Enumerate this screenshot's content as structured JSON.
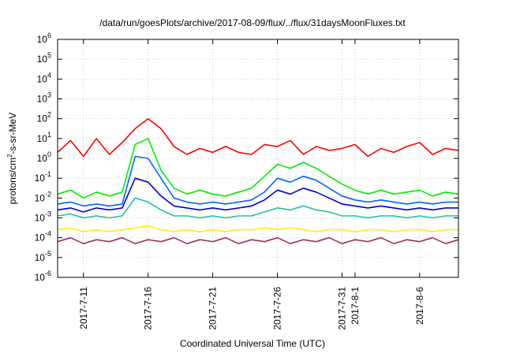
{
  "chart_data": {
    "type": "line",
    "title": "/data/run/goesPlots/archive/2017-08-09/flux/../flux/31daysMoonFluxes.txt",
    "xlabel": "Coordinated Universal Time (UTC)",
    "ylabel_parts": [
      "protons/cm",
      "2",
      "-s-sr-MeV"
    ],
    "y_scale": "log",
    "ylim_exp": [
      -6,
      6
    ],
    "y_ticks": [
      {
        "base": "10",
        "exp": "-6"
      },
      {
        "base": "10",
        "exp": "-5"
      },
      {
        "base": "10",
        "exp": "-4"
      },
      {
        "base": "10",
        "exp": "-3"
      },
      {
        "base": "10",
        "exp": "-2"
      },
      {
        "base": "10",
        "exp": "-1"
      },
      {
        "base": "10",
        "exp": "0"
      },
      {
        "base": "10",
        "exp": "1"
      },
      {
        "base": "10",
        "exp": "2"
      },
      {
        "base": "10",
        "exp": "3"
      },
      {
        "base": "10",
        "exp": "4"
      },
      {
        "base": "10",
        "exp": "5"
      },
      {
        "base": "10",
        "exp": "6"
      }
    ],
    "xlim": [
      "2017-07-09",
      "2017-08-09"
    ],
    "x_ticks": [
      "2017-7-11",
      "2017-7-16",
      "2017-7-21",
      "2017-7-26",
      "2017-7-31",
      "2017-8-1",
      "2017-8-6"
    ],
    "grid": true,
    "series": [
      {
        "color": "#ff0000",
        "x": [
          "2017-07-09",
          "2017-07-10",
          "2017-07-11",
          "2017-07-12",
          "2017-07-13",
          "2017-07-14",
          "2017-07-15",
          "2017-07-16",
          "2017-07-17",
          "2017-07-18",
          "2017-07-19",
          "2017-07-20",
          "2017-07-21",
          "2017-07-22",
          "2017-07-23",
          "2017-07-24",
          "2017-07-25",
          "2017-07-26",
          "2017-07-27",
          "2017-07-28",
          "2017-07-29",
          "2017-07-30",
          "2017-07-31",
          "2017-08-01",
          "2017-08-02",
          "2017-08-03",
          "2017-08-04",
          "2017-08-05",
          "2017-08-06",
          "2017-08-07",
          "2017-08-08",
          "2017-08-09"
        ],
        "log10_y": [
          0.3,
          0.9,
          0.1,
          1.0,
          0.2,
          0.8,
          1.5,
          2.0,
          1.5,
          0.6,
          0.2,
          0.5,
          0.3,
          0.6,
          0.3,
          0.2,
          0.7,
          0.6,
          0.9,
          0.2,
          0.6,
          0.4,
          0.5,
          0.7,
          0.1,
          0.5,
          0.3,
          0.6,
          0.8,
          0.2,
          0.5,
          0.4
        ]
      },
      {
        "color": "#00ee00",
        "x": [
          "2017-07-09",
          "2017-07-10",
          "2017-07-11",
          "2017-07-12",
          "2017-07-13",
          "2017-07-14",
          "2017-07-15",
          "2017-07-16",
          "2017-07-17",
          "2017-07-18",
          "2017-07-19",
          "2017-07-20",
          "2017-07-21",
          "2017-07-22",
          "2017-07-23",
          "2017-07-24",
          "2017-07-25",
          "2017-07-26",
          "2017-07-27",
          "2017-07-28",
          "2017-07-29",
          "2017-07-30",
          "2017-07-31",
          "2017-08-01",
          "2017-08-02",
          "2017-08-03",
          "2017-08-04",
          "2017-08-05",
          "2017-08-06",
          "2017-08-07",
          "2017-08-08",
          "2017-08-09"
        ],
        "log10_y": [
          -1.8,
          -1.6,
          -2.0,
          -1.7,
          -1.9,
          -1.7,
          0.7,
          1.0,
          -0.6,
          -1.5,
          -1.8,
          -1.6,
          -1.8,
          -1.9,
          -1.7,
          -1.5,
          -0.9,
          -0.3,
          -0.5,
          -0.2,
          -0.5,
          -0.9,
          -1.3,
          -1.6,
          -1.8,
          -1.6,
          -1.8,
          -1.7,
          -1.6,
          -1.9,
          -1.7,
          -1.8
        ]
      },
      {
        "color": "#0066ff",
        "x": [
          "2017-07-09",
          "2017-07-10",
          "2017-07-11",
          "2017-07-12",
          "2017-07-13",
          "2017-07-14",
          "2017-07-15",
          "2017-07-16",
          "2017-07-17",
          "2017-07-18",
          "2017-07-19",
          "2017-07-20",
          "2017-07-21",
          "2017-07-22",
          "2017-07-23",
          "2017-07-24",
          "2017-07-25",
          "2017-07-26",
          "2017-07-27",
          "2017-07-28",
          "2017-07-29",
          "2017-07-30",
          "2017-07-31",
          "2017-08-01",
          "2017-08-02",
          "2017-08-03",
          "2017-08-04",
          "2017-08-05",
          "2017-08-06",
          "2017-08-07",
          "2017-08-08",
          "2017-08-09"
        ],
        "log10_y": [
          -2.3,
          -2.2,
          -2.4,
          -2.3,
          -2.4,
          -2.3,
          0.1,
          0.0,
          -1.0,
          -2.0,
          -2.2,
          -2.3,
          -2.2,
          -2.3,
          -2.2,
          -2.1,
          -1.7,
          -1.0,
          -1.2,
          -0.9,
          -1.1,
          -1.5,
          -1.9,
          -2.1,
          -2.2,
          -2.1,
          -2.2,
          -2.3,
          -2.2,
          -2.3,
          -2.2,
          -2.2
        ]
      },
      {
        "color": "#0000dd",
        "x": [
          "2017-07-09",
          "2017-07-10",
          "2017-07-11",
          "2017-07-12",
          "2017-07-13",
          "2017-07-14",
          "2017-07-15",
          "2017-07-16",
          "2017-07-17",
          "2017-07-18",
          "2017-07-19",
          "2017-07-20",
          "2017-07-21",
          "2017-07-22",
          "2017-07-23",
          "2017-07-24",
          "2017-07-25",
          "2017-07-26",
          "2017-07-27",
          "2017-07-28",
          "2017-07-29",
          "2017-07-30",
          "2017-07-31",
          "2017-08-01",
          "2017-08-02",
          "2017-08-03",
          "2017-08-04",
          "2017-08-05",
          "2017-08-06",
          "2017-08-07",
          "2017-08-08",
          "2017-08-09"
        ],
        "log10_y": [
          -2.6,
          -2.5,
          -2.7,
          -2.5,
          -2.6,
          -2.5,
          -1.0,
          -1.2,
          -1.9,
          -2.4,
          -2.5,
          -2.6,
          -2.5,
          -2.6,
          -2.5,
          -2.4,
          -2.1,
          -1.6,
          -1.8,
          -1.5,
          -1.7,
          -2.0,
          -2.3,
          -2.4,
          -2.5,
          -2.4,
          -2.5,
          -2.6,
          -2.5,
          -2.6,
          -2.5,
          -2.5
        ]
      },
      {
        "color": "#20c0a0",
        "x": [
          "2017-07-09",
          "2017-07-10",
          "2017-07-11",
          "2017-07-12",
          "2017-07-13",
          "2017-07-14",
          "2017-07-15",
          "2017-07-16",
          "2017-07-17",
          "2017-07-18",
          "2017-07-19",
          "2017-07-20",
          "2017-07-21",
          "2017-07-22",
          "2017-07-23",
          "2017-07-24",
          "2017-07-25",
          "2017-07-26",
          "2017-07-27",
          "2017-07-28",
          "2017-07-29",
          "2017-07-30",
          "2017-07-31",
          "2017-08-01",
          "2017-08-02",
          "2017-08-03",
          "2017-08-04",
          "2017-08-05",
          "2017-08-06",
          "2017-08-07",
          "2017-08-08",
          "2017-08-09"
        ],
        "log10_y": [
          -2.9,
          -2.8,
          -3.0,
          -2.9,
          -3.0,
          -2.9,
          -2.0,
          -2.2,
          -2.6,
          -2.9,
          -2.9,
          -3.0,
          -2.9,
          -3.0,
          -2.9,
          -2.9,
          -2.7,
          -2.5,
          -2.6,
          -2.4,
          -2.6,
          -2.7,
          -2.9,
          -2.9,
          -3.0,
          -2.9,
          -2.9,
          -3.0,
          -2.9,
          -3.0,
          -2.9,
          -2.9
        ]
      },
      {
        "color": "#ffee00",
        "x": [
          "2017-07-09",
          "2017-07-10",
          "2017-07-11",
          "2017-07-12",
          "2017-07-13",
          "2017-07-14",
          "2017-07-15",
          "2017-07-16",
          "2017-07-17",
          "2017-07-18",
          "2017-07-19",
          "2017-07-20",
          "2017-07-21",
          "2017-07-22",
          "2017-07-23",
          "2017-07-24",
          "2017-07-25",
          "2017-07-26",
          "2017-07-27",
          "2017-07-28",
          "2017-07-29",
          "2017-07-30",
          "2017-07-31",
          "2017-08-01",
          "2017-08-02",
          "2017-08-03",
          "2017-08-04",
          "2017-08-05",
          "2017-08-06",
          "2017-08-07",
          "2017-08-08",
          "2017-08-09"
        ],
        "log10_y": [
          -3.6,
          -3.5,
          -3.7,
          -3.6,
          -3.7,
          -3.6,
          -3.5,
          -3.4,
          -3.6,
          -3.7,
          -3.6,
          -3.7,
          -3.6,
          -3.7,
          -3.6,
          -3.6,
          -3.5,
          -3.6,
          -3.5,
          -3.6,
          -3.7,
          -3.6,
          -3.6,
          -3.7,
          -3.6,
          -3.6,
          -3.7,
          -3.6,
          -3.6,
          -3.7,
          -3.6,
          -3.6
        ]
      },
      {
        "color": "#993366",
        "x": [
          "2017-07-09",
          "2017-07-10",
          "2017-07-11",
          "2017-07-12",
          "2017-07-13",
          "2017-07-14",
          "2017-07-15",
          "2017-07-16",
          "2017-07-17",
          "2017-07-18",
          "2017-07-19",
          "2017-07-20",
          "2017-07-21",
          "2017-07-22",
          "2017-07-23",
          "2017-07-24",
          "2017-07-25",
          "2017-07-26",
          "2017-07-27",
          "2017-07-28",
          "2017-07-29",
          "2017-07-30",
          "2017-07-31",
          "2017-08-01",
          "2017-08-02",
          "2017-08-03",
          "2017-08-04",
          "2017-08-05",
          "2017-08-06",
          "2017-08-07",
          "2017-08-08",
          "2017-08-09"
        ],
        "log10_y": [
          -4.2,
          -4.0,
          -4.3,
          -4.1,
          -4.2,
          -4.0,
          -4.3,
          -4.1,
          -4.2,
          -4.0,
          -4.3,
          -4.1,
          -4.2,
          -4.0,
          -4.3,
          -4.1,
          -4.2,
          -4.0,
          -4.3,
          -4.1,
          -4.2,
          -4.0,
          -4.3,
          -4.1,
          -4.2,
          -4.0,
          -4.3,
          -4.1,
          -4.2,
          -4.0,
          -4.3,
          -4.1
        ]
      }
    ]
  }
}
